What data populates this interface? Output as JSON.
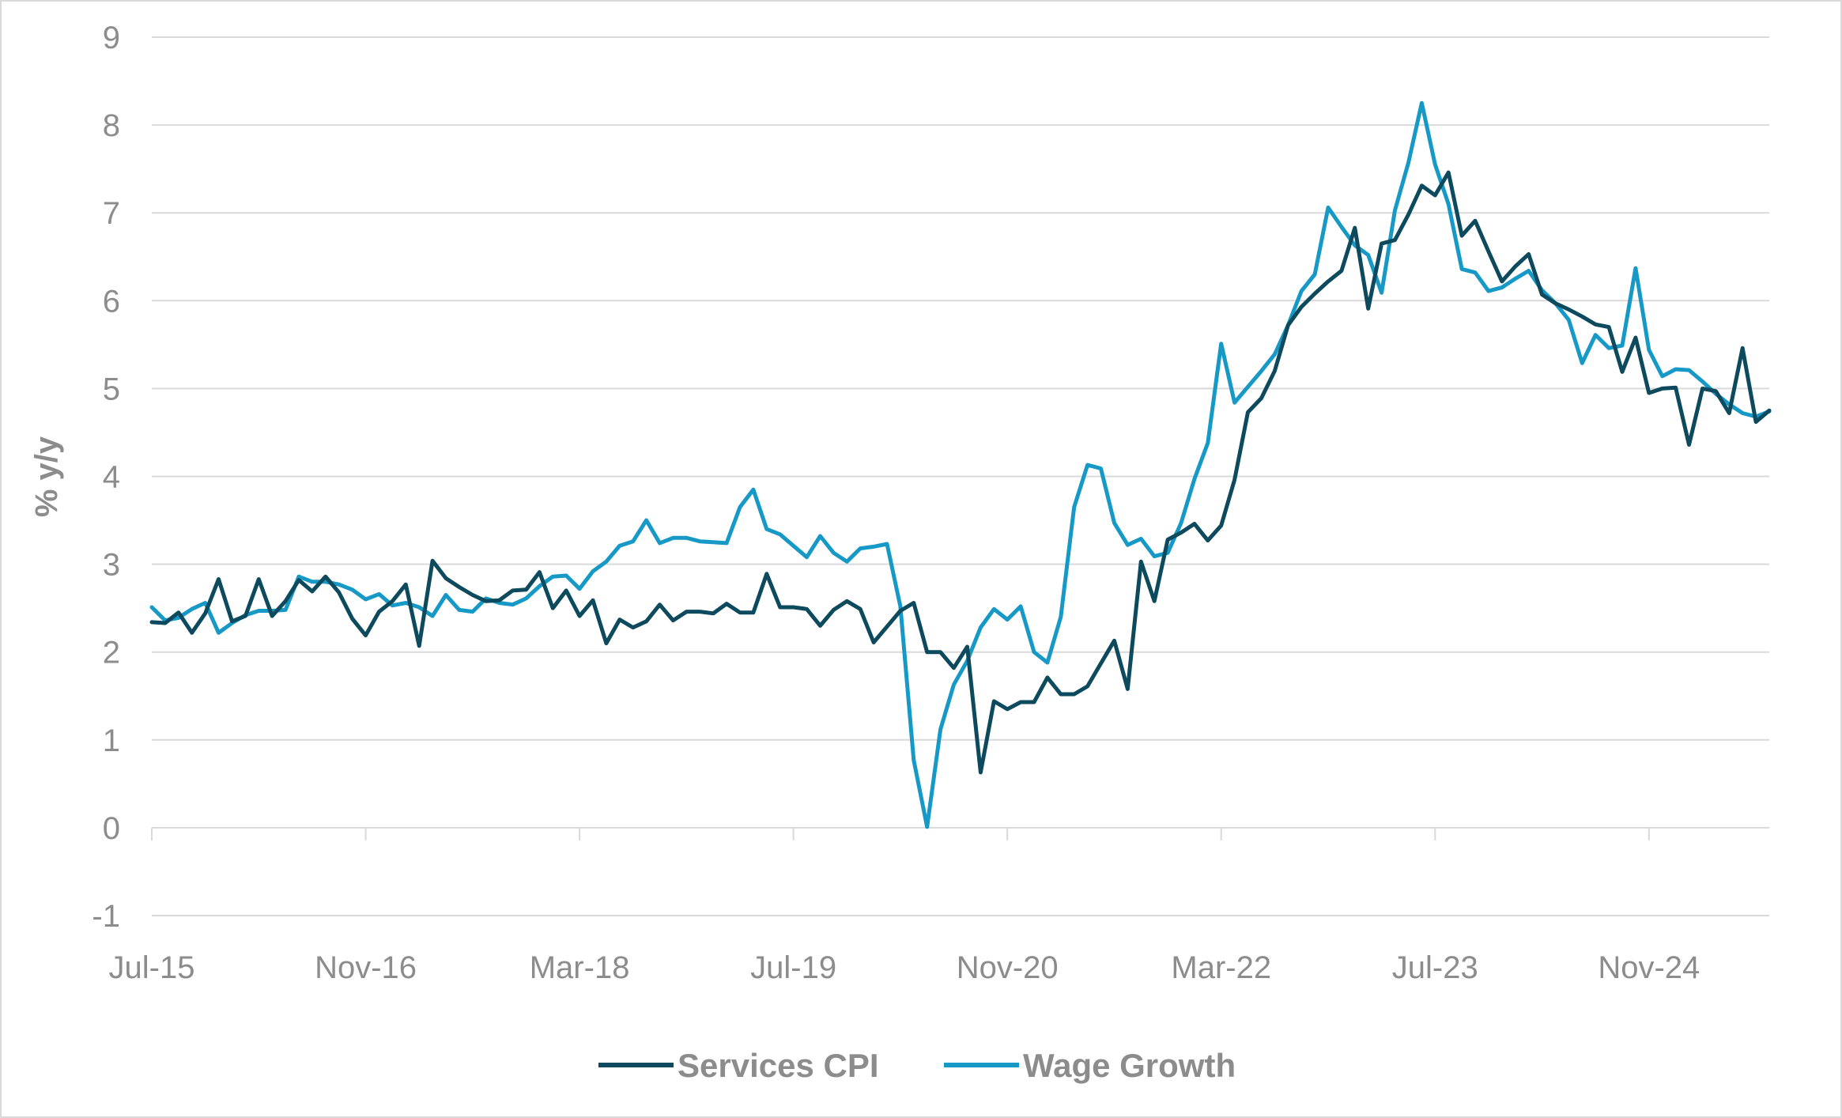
{
  "chart_data": {
    "type": "line",
    "title": "",
    "xlabel": "",
    "ylabel": "% y/y",
    "ylim": [
      -1,
      9
    ],
    "yticks": [
      "-1",
      "0",
      "1",
      "2",
      "3",
      "4",
      "5",
      "6",
      "7",
      "8",
      "9"
    ],
    "xticks": [
      "Jul-15",
      "Nov-16",
      "Mar-18",
      "Jul-19",
      "Nov-20",
      "Mar-22",
      "Jul-23",
      "Nov-24"
    ],
    "x_start": "Jul-15",
    "x_end": "Jun-25",
    "grid": true,
    "legend": "bottom",
    "series": [
      {
        "name": "Services CPI",
        "color": "#0d4a5e",
        "values": [
          2.34,
          2.33,
          2.45,
          2.22,
          2.44,
          2.83,
          2.35,
          2.41,
          2.83,
          2.41,
          2.58,
          2.82,
          2.69,
          2.86,
          2.68,
          2.38,
          2.19,
          2.46,
          2.58,
          2.77,
          2.07,
          3.04,
          2.84,
          2.74,
          2.65,
          2.58,
          2.59,
          2.7,
          2.71,
          2.91,
          2.5,
          2.7,
          2.41,
          2.59,
          2.1,
          2.37,
          2.28,
          2.35,
          2.54,
          2.36,
          2.46,
          2.46,
          2.44,
          2.55,
          2.45,
          2.45,
          2.89,
          2.51,
          2.51,
          2.49,
          2.3,
          2.48,
          2.58,
          2.49,
          2.11,
          2.29,
          2.47,
          2.56,
          2.0,
          2.0,
          1.82,
          2.06,
          0.63,
          1.44,
          1.35,
          1.43,
          1.43,
          1.71,
          1.52,
          1.52,
          1.61,
          1.87,
          2.13,
          1.58,
          3.03,
          2.58,
          3.28,
          3.36,
          3.46,
          3.27,
          3.44,
          3.96,
          4.73,
          4.89,
          5.2,
          5.72,
          5.93,
          6.08,
          6.22,
          6.34,
          6.83,
          5.91,
          6.65,
          6.69,
          6.98,
          7.31,
          7.2,
          7.46,
          6.74,
          6.91,
          6.56,
          6.22,
          6.39,
          6.53,
          6.07,
          5.97,
          5.9,
          5.82,
          5.73,
          5.7,
          5.19,
          5.58,
          4.95,
          5.0,
          5.01,
          4.36,
          5.0,
          4.97,
          4.72,
          5.46,
          4.62,
          4.75
        ]
      },
      {
        "name": "Wage Growth",
        "color": "#1699c6",
        "values": [
          2.51,
          2.36,
          2.39,
          2.49,
          2.56,
          2.22,
          2.33,
          2.42,
          2.47,
          2.47,
          2.48,
          2.86,
          2.8,
          2.8,
          2.77,
          2.71,
          2.6,
          2.66,
          2.53,
          2.56,
          2.51,
          2.41,
          2.65,
          2.48,
          2.46,
          2.61,
          2.56,
          2.54,
          2.61,
          2.75,
          2.86,
          2.87,
          2.72,
          2.92,
          3.03,
          3.21,
          3.26,
          3.5,
          3.24,
          3.3,
          3.3,
          3.26,
          3.25,
          3.24,
          3.65,
          3.85,
          3.4,
          3.34,
          3.21,
          3.08,
          3.32,
          3.13,
          3.03,
          3.18,
          3.2,
          3.23,
          2.52,
          0.77,
          0.01,
          1.12,
          1.63,
          1.9,
          2.28,
          2.49,
          2.37,
          2.52,
          2.0,
          1.88,
          2.4,
          3.65,
          4.13,
          4.09,
          3.47,
          3.22,
          3.29,
          3.09,
          3.13,
          3.47,
          3.97,
          4.38,
          5.51,
          4.84,
          5.02,
          5.2,
          5.39,
          5.72,
          6.11,
          6.3,
          7.06,
          6.84,
          6.63,
          6.52,
          6.09,
          7.03,
          7.57,
          8.25,
          7.55,
          7.1,
          6.36,
          6.32,
          6.11,
          6.15,
          6.25,
          6.34,
          6.12,
          5.97,
          5.78,
          5.29,
          5.61,
          5.46,
          5.49,
          6.37,
          5.44,
          5.14,
          5.22,
          5.21,
          5.08,
          4.94,
          4.82,
          4.72,
          4.68,
          4.74
        ]
      }
    ]
  }
}
